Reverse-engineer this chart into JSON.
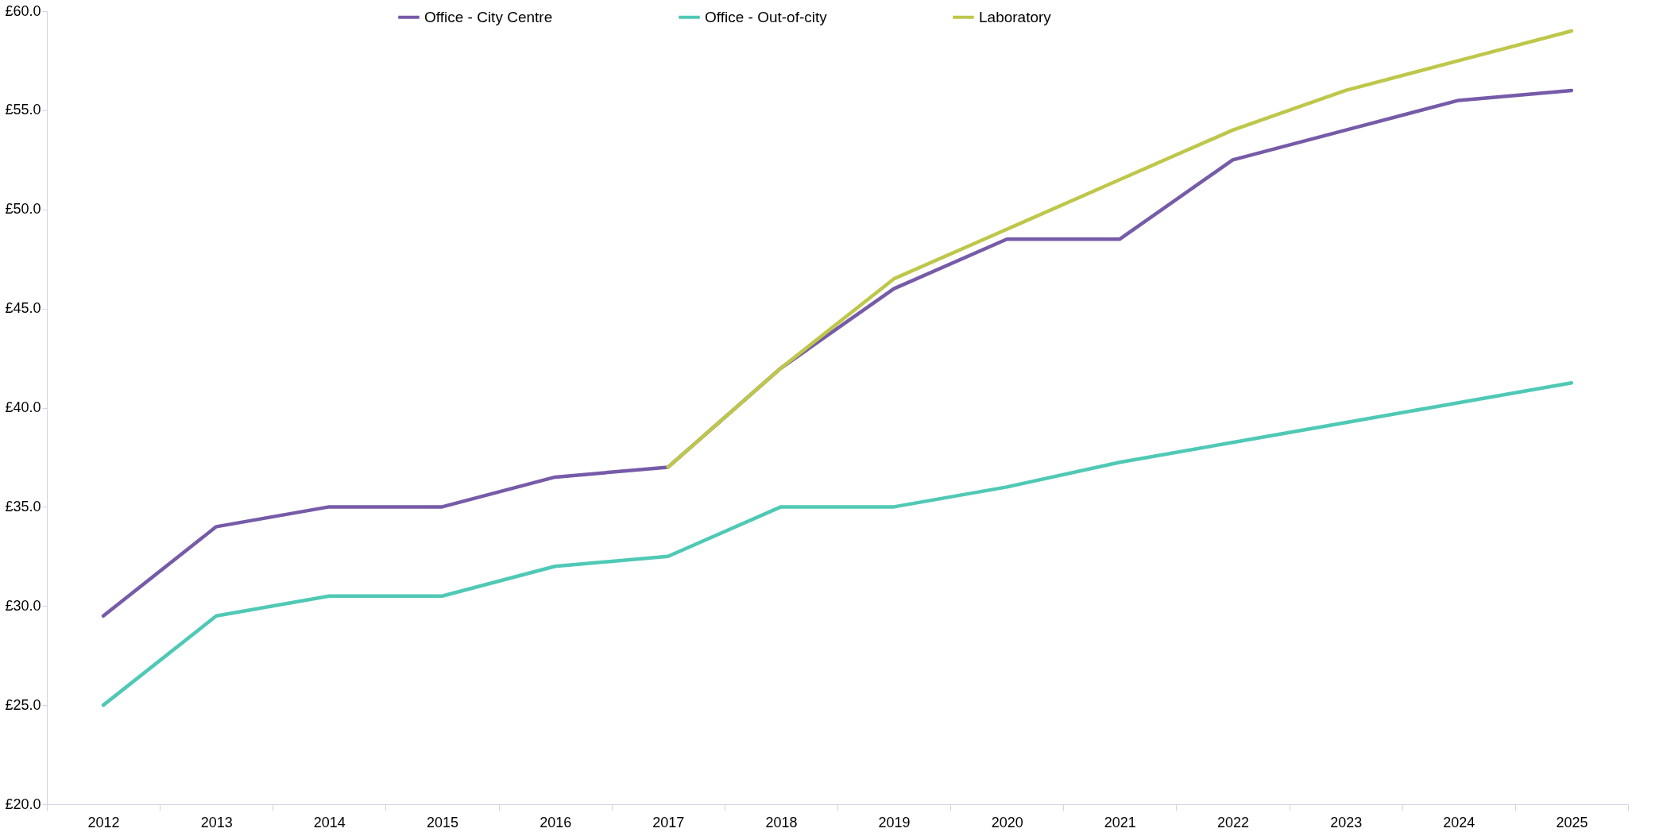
{
  "chart_data": {
    "type": "line",
    "categories": [
      "2012",
      "2013",
      "2014",
      "2015",
      "2016",
      "2017",
      "2018",
      "2019",
      "2020",
      "2021",
      "2022",
      "2023",
      "2024",
      "2025"
    ],
    "series": [
      {
        "name": "Office - City Centre",
        "color": "#765ba8",
        "values": [
          29.5,
          34,
          35,
          35,
          36.5,
          37,
          42,
          46,
          48.5,
          48.5,
          52.5,
          54,
          55.5,
          56
        ]
      },
      {
        "name": "Office - Out-of-city",
        "color": "#4fc9b5",
        "values": [
          25,
          29.5,
          30.5,
          30.5,
          32,
          32.5,
          35,
          35,
          36,
          37.25,
          38.25,
          39.25,
          40.25,
          41.25
        ]
      },
      {
        "name": "Laboratory",
        "color": "#bec74a",
        "values": [
          null,
          null,
          null,
          null,
          null,
          37,
          42,
          46.5,
          49,
          51.5,
          54,
          56,
          57.5,
          59
        ]
      }
    ],
    "ylim": [
      20,
      60
    ],
    "yticks": [
      {
        "value": 20,
        "label": "£20.0"
      },
      {
        "value": 25,
        "label": "£25.0"
      },
      {
        "value": 30,
        "label": "£30.0"
      },
      {
        "value": 35,
        "label": "£35.0"
      },
      {
        "value": 40,
        "label": "£40.0"
      },
      {
        "value": 45,
        "label": "£45.0"
      },
      {
        "value": 50,
        "label": "£50.0"
      },
      {
        "value": 55,
        "label": "£55.0"
      },
      {
        "value": 60,
        "label": "£60.0"
      }
    ],
    "grid": false,
    "legend": "top",
    "marker": "none",
    "line_style": "solid"
  }
}
